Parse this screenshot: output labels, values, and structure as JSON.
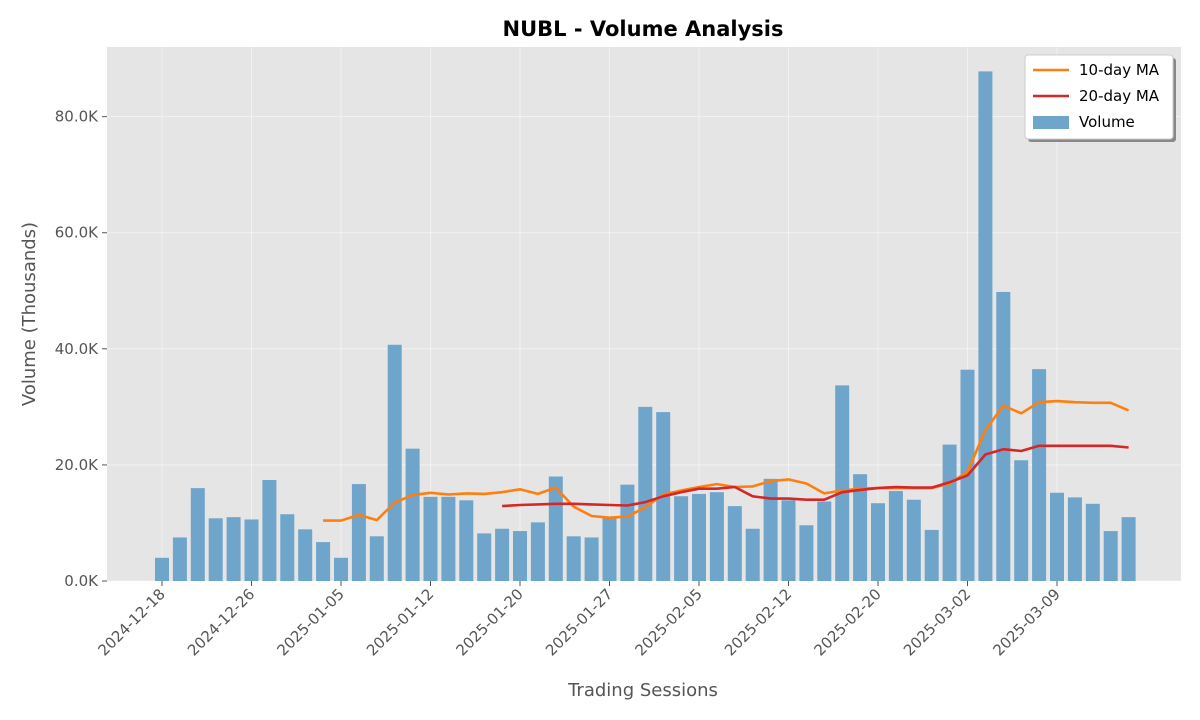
{
  "chart_data": {
    "type": "bar",
    "title": "NUBL - Volume Analysis",
    "xlabel": "Trading Sessions",
    "ylabel": "Volume (Thousands)",
    "ylim": [
      0,
      92000
    ],
    "grid": true,
    "legend_position": "top-right",
    "y_ticks": [
      {
        "value": 0,
        "label": "0.0K"
      },
      {
        "value": 20000,
        "label": "20.0K"
      },
      {
        "value": 40000,
        "label": "40.0K"
      },
      {
        "value": 60000,
        "label": "60.0K"
      },
      {
        "value": 80000,
        "label": "80.0K"
      }
    ],
    "x_ticks": [
      {
        "index": 0,
        "label": "2024-12-18"
      },
      {
        "index": 5,
        "label": "2024-12-26"
      },
      {
        "index": 10,
        "label": "2025-01-05"
      },
      {
        "index": 15,
        "label": "2025-01-12"
      },
      {
        "index": 20,
        "label": "2025-01-20"
      },
      {
        "index": 25,
        "label": "2025-01-27"
      },
      {
        "index": 30,
        "label": "2025-02-05"
      },
      {
        "index": 35,
        "label": "2025-02-12"
      },
      {
        "index": 40,
        "label": "2025-02-20"
      },
      {
        "index": 45,
        "label": "2025-03-02"
      },
      {
        "index": 50,
        "label": "2025-03-09"
      }
    ],
    "series": [
      {
        "name": "Volume",
        "kind": "bar",
        "color": "#6fa4cb",
        "values": [
          4000,
          7500,
          16000,
          10800,
          11000,
          10600,
          17400,
          11500,
          8900,
          6700,
          4000,
          16700,
          7700,
          40700,
          22800,
          14500,
          14500,
          13900,
          8200,
          9000,
          8600,
          10100,
          18000,
          7700,
          7500,
          11000,
          16600,
          30000,
          29100,
          14600,
          15000,
          15300,
          12900,
          9000,
          17600,
          13900,
          9600,
          13700,
          33700,
          18400,
          13400,
          15500,
          14000,
          8800,
          23500,
          36400,
          87800,
          49800,
          20800,
          36500,
          15200,
          14400,
          13300,
          8600,
          11000
        ]
      },
      {
        "name": "10-day MA",
        "kind": "line",
        "color": "#ff7f0e",
        "values": [
          null,
          null,
          null,
          null,
          null,
          null,
          null,
          null,
          null,
          10400,
          10400,
          11400,
          10500,
          13500,
          14800,
          15200,
          14900,
          15100,
          15000,
          15300,
          15800,
          15000,
          16100,
          12800,
          11200,
          10900,
          11100,
          12700,
          14900,
          15600,
          16200,
          16700,
          16200,
          16300,
          17200,
          17500,
          16800,
          15100,
          15600,
          15900,
          16000,
          16000,
          16000,
          16000,
          16800,
          18800,
          26000,
          30200,
          28900,
          30800,
          31000,
          30800,
          30700,
          30700,
          29400
        ]
      },
      {
        "name": "20-day MA",
        "kind": "line",
        "color": "#d62728",
        "values": [
          null,
          null,
          null,
          null,
          null,
          null,
          null,
          null,
          null,
          null,
          null,
          null,
          null,
          null,
          null,
          null,
          null,
          null,
          null,
          12900,
          13100,
          13200,
          13300,
          13300,
          13200,
          13100,
          13000,
          13600,
          14600,
          15300,
          15900,
          15900,
          16200,
          14600,
          14200,
          14200,
          14000,
          14000,
          15300,
          15700,
          16000,
          16200,
          16100,
          16100,
          17000,
          18200,
          21800,
          22700,
          22400,
          23300,
          23300,
          23300,
          23300,
          23300,
          23000
        ]
      }
    ]
  }
}
